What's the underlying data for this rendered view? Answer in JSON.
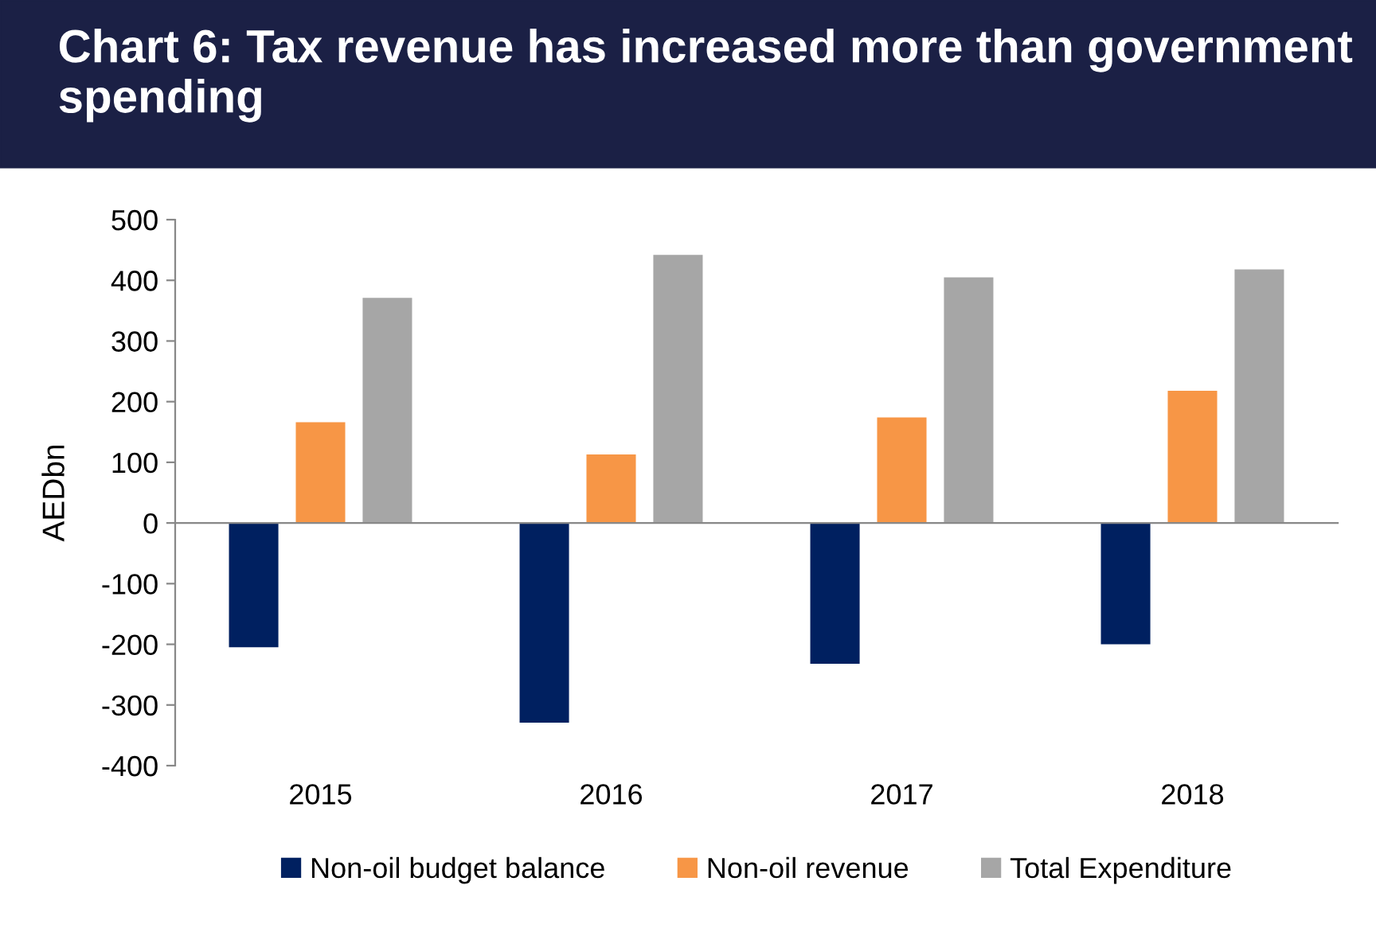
{
  "chart_data": {
    "type": "bar",
    "title": "Chart 6: Tax revenue has increased more than government spending",
    "ylabel": "AEDbn",
    "categories": [
      "2015",
      "2016",
      "2017",
      "2018"
    ],
    "series": [
      {
        "name": "Non-oil budget balance",
        "color": "#002060",
        "values": [
          -205,
          -329,
          -232,
          -200
        ]
      },
      {
        "name": "Non-oil revenue",
        "color": "#f79646",
        "values": [
          166,
          113,
          174,
          218
        ]
      },
      {
        "name": "Total Expenditure",
        "color": "#a6a6a6",
        "values": [
          371,
          442,
          405,
          418
        ]
      }
    ],
    "ylim": [
      -400,
      500
    ],
    "yticks": [
      -400,
      -300,
      -200,
      -100,
      0,
      100,
      200,
      300,
      400,
      500
    ],
    "legend": "bottom"
  }
}
